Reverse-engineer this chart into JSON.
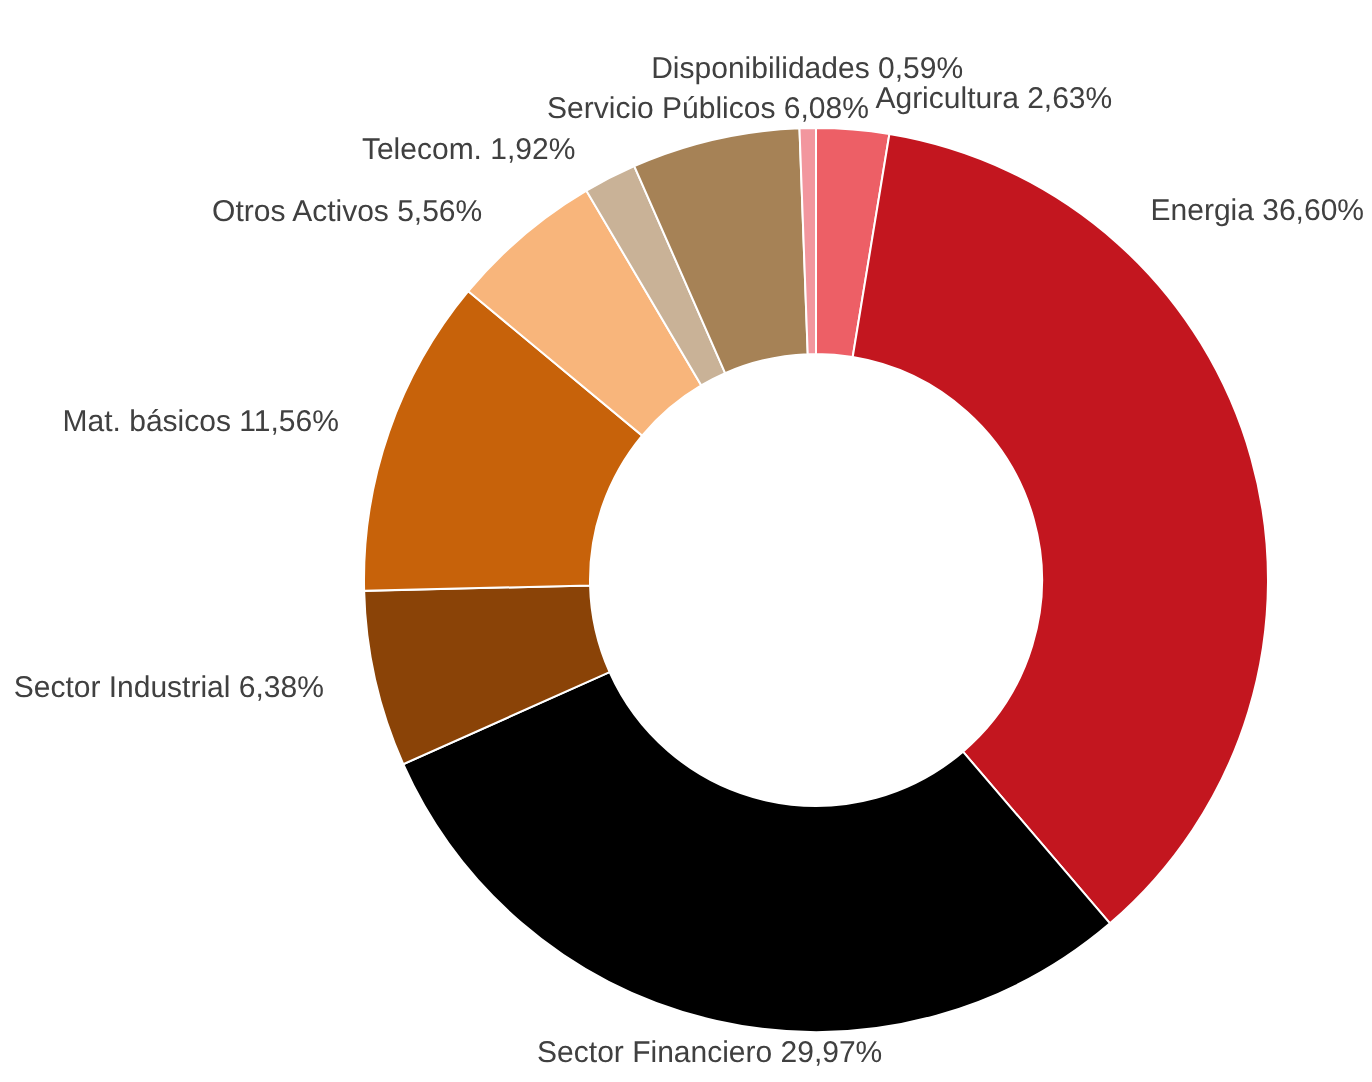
{
  "chart_data": {
    "type": "donut",
    "categories": [
      "Agricultura",
      "Energia",
      "Sector Financiero",
      "Sector Industrial",
      "Mat. básicos",
      "Otros Activos",
      "Telecom.",
      "Servicio Públicos",
      "Disponibilidades"
    ],
    "values": [
      2.63,
      36.6,
      29.97,
      6.38,
      11.56,
      5.56,
      1.92,
      6.08,
      0.59
    ],
    "value_labels": [
      "2,63%",
      "36,60%",
      "29,97%",
      "6,38%",
      "11,56%",
      "5,56%",
      "1,92%",
      "6,08%",
      "0,59%"
    ],
    "colors": [
      "#ed5f66",
      "#c3161f",
      "#000000",
      "#8a4307",
      "#c7620a",
      "#f8b57b",
      "#c9b297",
      "#a68256",
      "#f2969e"
    ]
  }
}
